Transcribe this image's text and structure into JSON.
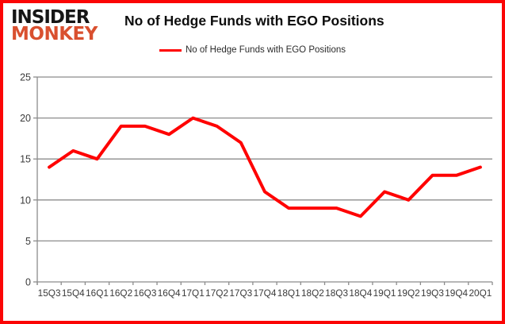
{
  "logo": {
    "line1": "INSIDER",
    "line2": "MONKEY"
  },
  "header": {
    "title": "No of Hedge Funds with EGO Positions"
  },
  "legend": {
    "label": "No of Hedge Funds with EGO Positions"
  },
  "chart_data": {
    "type": "line",
    "title": "No of Hedge Funds with EGO Positions",
    "categories": [
      "15Q3",
      "15Q4",
      "16Q1",
      "16Q2",
      "16Q3",
      "16Q4",
      "17Q1",
      "17Q2",
      "17Q3",
      "17Q4",
      "18Q1",
      "18Q2",
      "18Q3",
      "18Q4",
      "19Q1",
      "19Q2",
      "19Q3",
      "19Q4",
      "20Q1"
    ],
    "series": [
      {
        "name": "No of Hedge Funds with EGO Positions",
        "color": "#ff0000",
        "values": [
          14,
          16,
          15,
          19,
          19,
          18,
          20,
          19,
          17,
          11,
          9,
          9,
          9,
          8,
          11,
          10,
          13,
          13,
          14
        ]
      }
    ],
    "xlabel": "",
    "ylabel": "",
    "ylim": [
      0,
      25
    ],
    "yticks": [
      0,
      5,
      10,
      15,
      20,
      25
    ],
    "grid": true,
    "legend_position": "top-center"
  },
  "colors": {
    "line": "#ff0000",
    "frame_border": "#fb0505",
    "gridline": "#8c8c8c",
    "axis_text": "#3a3a3a",
    "title_text": "#0d0d0d",
    "logo_black": "#151515",
    "logo_red": "#d9502f",
    "background": "#ffffff"
  }
}
